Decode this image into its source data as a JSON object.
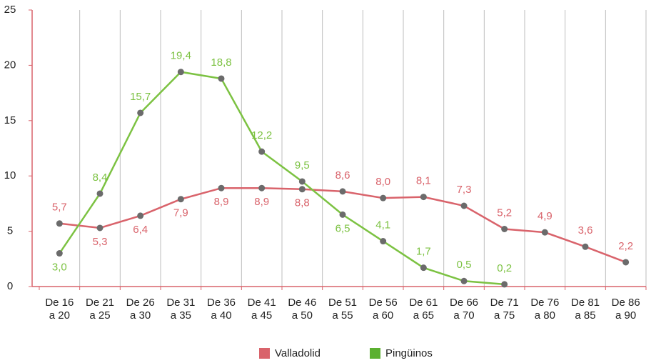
{
  "chart_data": {
    "type": "line",
    "categories": [
      "De 16\na 20",
      "De 21\na 25",
      "De 26\na 30",
      "De 31\na 35",
      "De 36\na 40",
      "De 41\na 45",
      "De 46\na 50",
      "De 51\na 55",
      "De 56\na 60",
      "De 61\na 65",
      "De 66\na 70",
      "De 71\na 75",
      "De 76\na 80",
      "De 81\na 85",
      "De 86\na 90"
    ],
    "series": [
      {
        "name": "Valladolid",
        "color": "#d9636b",
        "values": [
          5.7,
          5.3,
          6.4,
          7.9,
          8.9,
          8.9,
          8.8,
          8.6,
          8.0,
          8.1,
          7.3,
          5.2,
          4.9,
          3.6,
          2.2
        ],
        "value_labels": [
          "5,7",
          "5,3",
          "6,4",
          "7,9",
          "8,9",
          "8,9",
          "8,8",
          "8,6",
          "8,0",
          "8,1",
          "7,3",
          "5,2",
          "4,9",
          "3,6",
          "2,2"
        ]
      },
      {
        "name": "Pingüinos",
        "color": "#7cc242",
        "values": [
          3.0,
          8.4,
          15.7,
          19.4,
          18.8,
          12.2,
          9.5,
          6.5,
          4.1,
          1.7,
          0.5,
          0.2,
          null,
          null,
          null
        ],
        "value_labels": [
          "3,0",
          "8,4",
          "15,7",
          "19,4",
          "18,8",
          "12,2",
          "9,5",
          "6,5",
          "4,1",
          "1,7",
          "0,5",
          "0,2",
          null,
          null,
          null
        ]
      }
    ],
    "ylim": [
      0,
      25
    ],
    "yticks": [
      0,
      5,
      10,
      15,
      20,
      25
    ],
    "grid": true,
    "legend": "bottom"
  }
}
